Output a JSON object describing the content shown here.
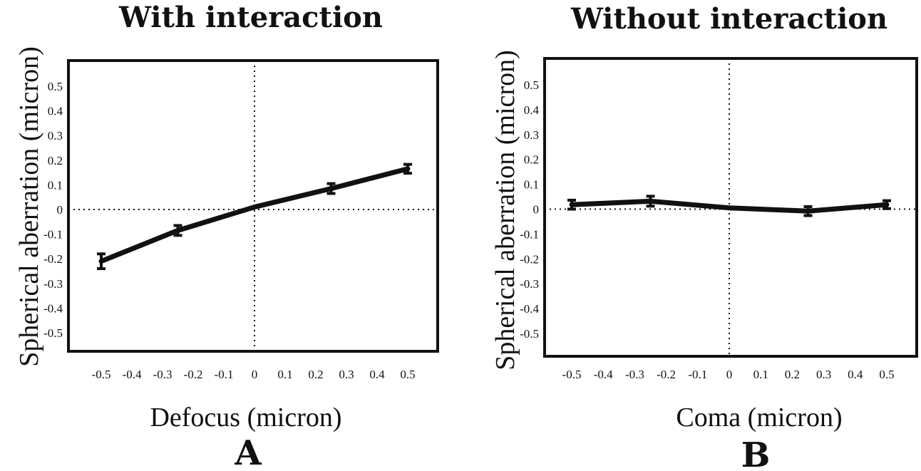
{
  "chart_data": [
    {
      "type": "line",
      "title": "With interaction",
      "panel_label": "A",
      "xlabel": "Defocus (micron)",
      "ylabel": "Spherical aberration (micron)",
      "xlim": [
        -0.5,
        0.5
      ],
      "ylim": [
        -0.5,
        0.5
      ],
      "x_ticks": [
        -0.5,
        -0.4,
        -0.3,
        -0.2,
        -0.1,
        0,
        0.1,
        0.2,
        0.3,
        0.4,
        0.5
      ],
      "x_tick_labels": [
        "-0.5",
        "-0.4",
        "-0.3",
        "-0.2",
        "-0.1",
        "0",
        "0.1",
        "0.2",
        "0.3",
        "0.4",
        "0.5"
      ],
      "y_ticks": [
        0.5,
        0.4,
        0.3,
        0.2,
        0.1,
        0,
        -0.1,
        -0.2,
        -0.3,
        -0.4,
        -0.5
      ],
      "y_tick_labels": [
        "0.5",
        "0.4",
        "0.3",
        "0.2",
        "0.1",
        "0",
        "-0.1",
        "-0.2",
        "-0.3",
        "-0.4",
        "-0.5"
      ],
      "reference_lines": "dotted lines at x = 0 and y = 0",
      "grid": false,
      "series": [
        {
          "x": [
            -0.5,
            -0.25,
            0,
            0.25,
            0.5
          ],
          "y": [
            -0.21,
            -0.085,
            0.01,
            0.085,
            0.165
          ],
          "error": [
            0.03,
            0.02,
            0,
            0.02,
            0.018
          ],
          "color": "#111111"
        }
      ]
    },
    {
      "type": "line",
      "title": "Without interaction",
      "panel_label": "B",
      "xlabel": "Coma (micron)",
      "ylabel": "Spherical aberration (micron)",
      "xlim": [
        -0.5,
        0.5
      ],
      "ylim": [
        -0.5,
        0.5
      ],
      "x_ticks": [
        -0.5,
        -0.4,
        -0.3,
        -0.2,
        -0.1,
        0,
        0.1,
        0.2,
        0.3,
        0.4,
        0.5
      ],
      "x_tick_labels": [
        "-0.5",
        "-0.4",
        "-0.3",
        "-0.2",
        "-0.1",
        "0",
        "0.1",
        "0.2",
        "0.3",
        "0.4",
        "0.5"
      ],
      "y_ticks": [
        0.5,
        0.4,
        0.3,
        0.2,
        0.1,
        0,
        -0.1,
        -0.2,
        -0.3,
        -0.4,
        -0.5
      ],
      "y_tick_labels": [
        "0.5",
        "0.4",
        "0.3",
        "0.2",
        "0.1",
        "0",
        "-0.1",
        "-0.2",
        "-0.3",
        "-0.4",
        "-0.5"
      ],
      "reference_lines": "dotted lines at x = 0 and y = 0",
      "grid": false,
      "series": [
        {
          "x": [
            -0.5,
            -0.25,
            0,
            0.25,
            0.5
          ],
          "y": [
            0.018,
            0.032,
            0.005,
            -0.008,
            0.018
          ],
          "error": [
            0.018,
            0.02,
            0,
            0.018,
            0.016
          ],
          "color": "#111111"
        }
      ]
    }
  ]
}
